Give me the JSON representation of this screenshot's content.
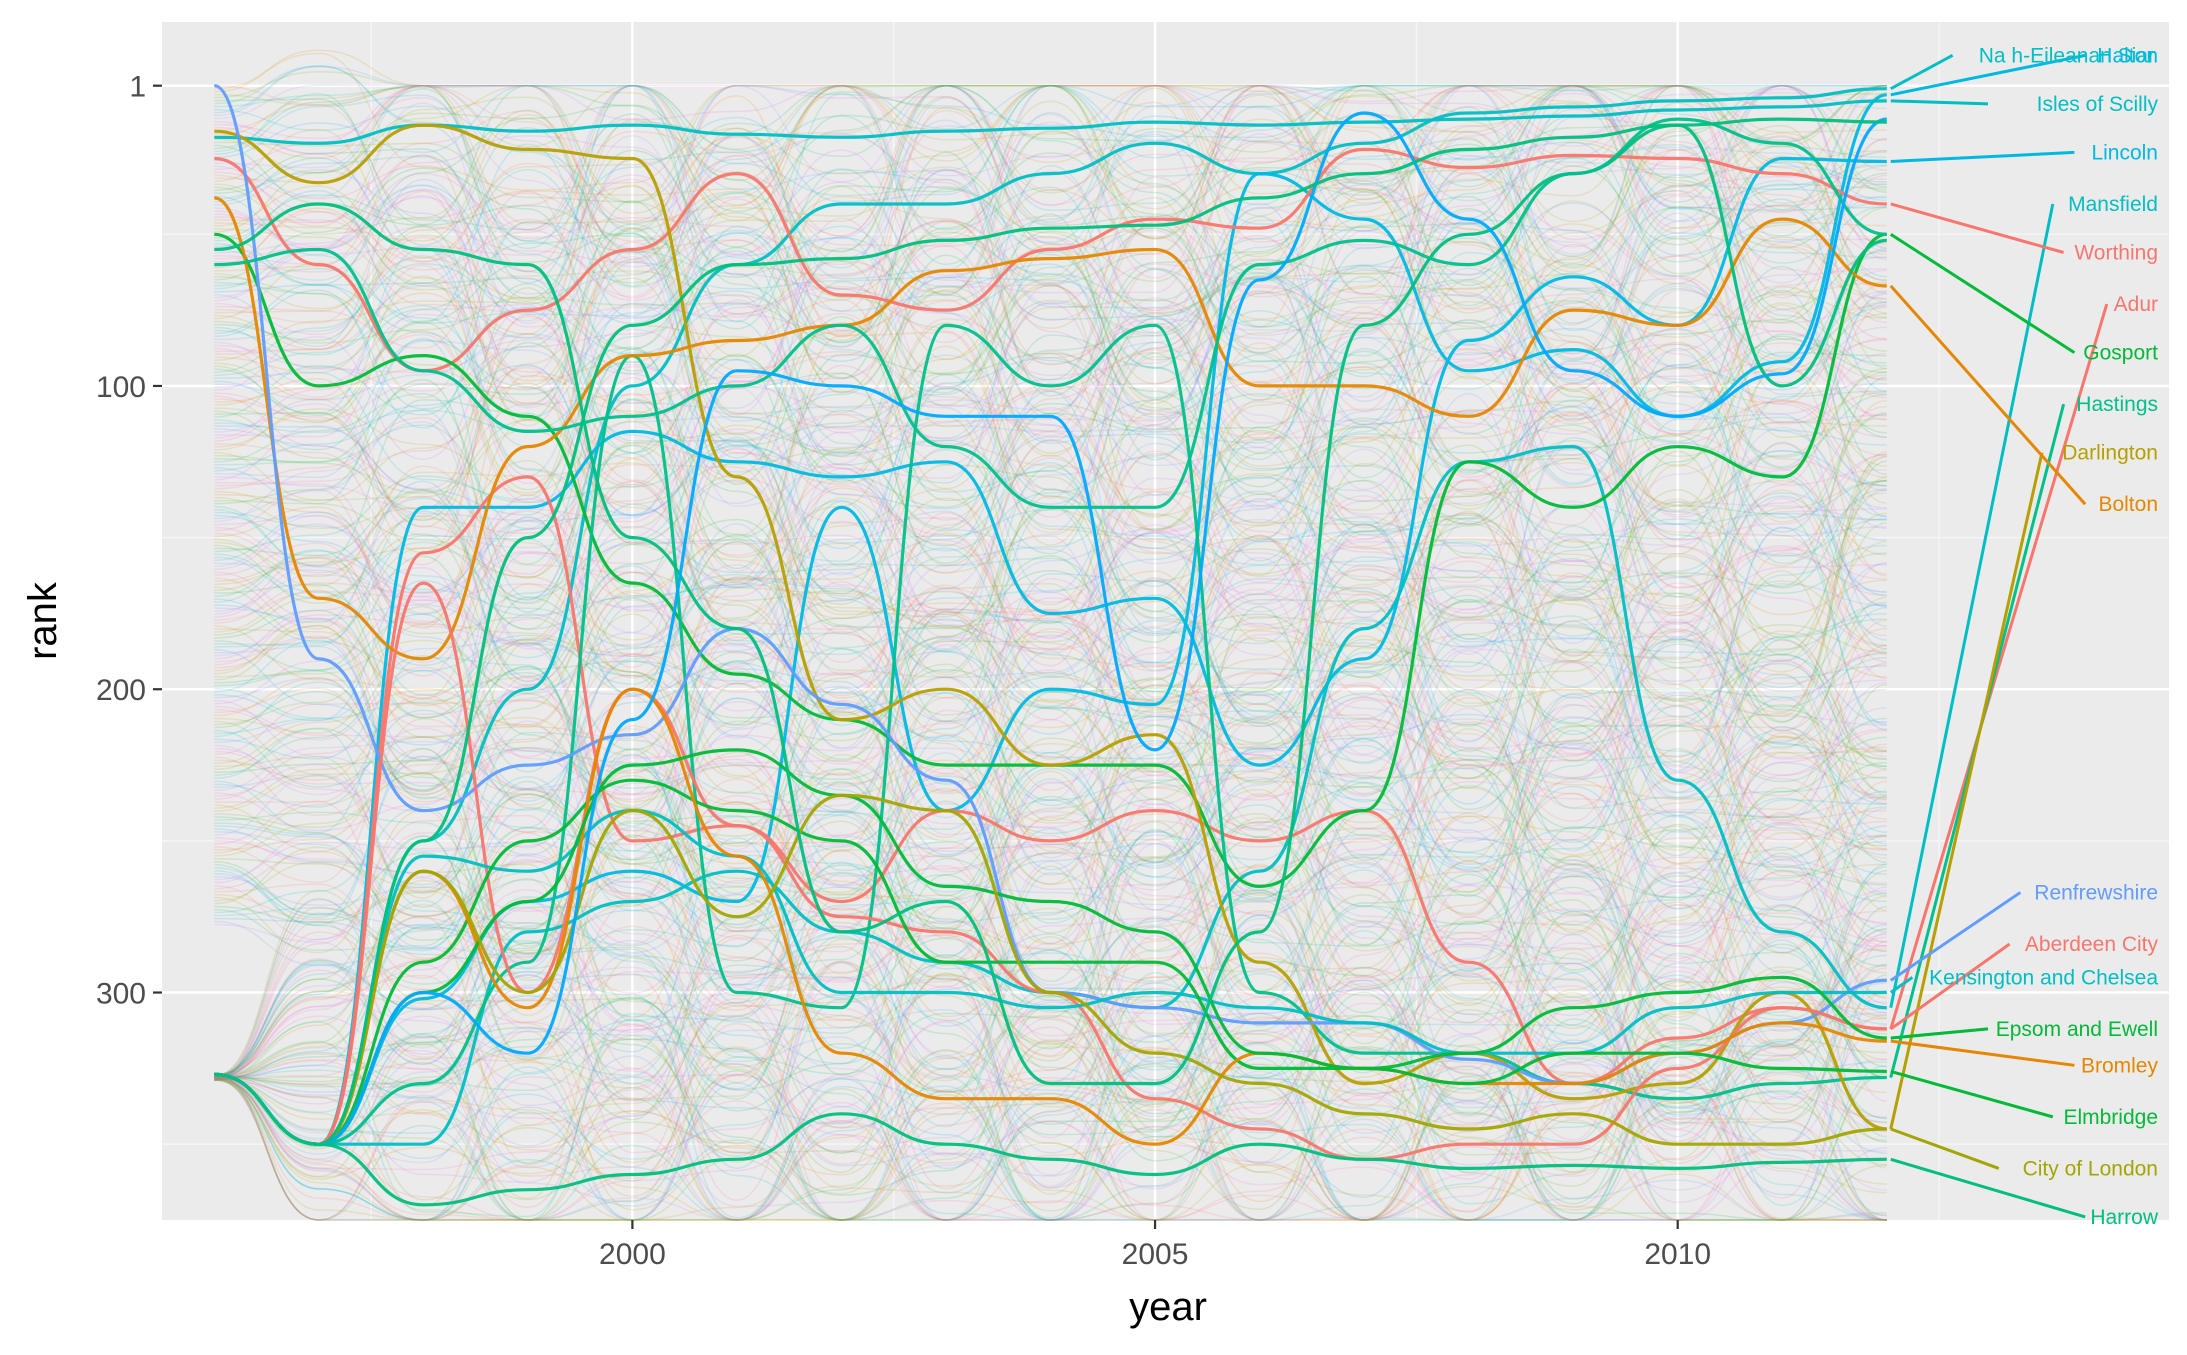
{
  "chart_data": {
    "type": "line",
    "subtype": "bump chart (smoothed rank over time)",
    "title": "",
    "xlabel": "year",
    "ylabel": "rank",
    "x_ticks": [
      2000,
      2005,
      2010
    ],
    "y_ticks": [
      1,
      100,
      200,
      300
    ],
    "xlim": [
      1995.5,
      2014.7
    ],
    "ylim": [
      375,
      -20
    ],
    "y_reversed": true,
    "grid": true,
    "legend": "none (series labeled at line ends)",
    "background_series_count": 380,
    "years": [
      1996,
      1997,
      1998,
      1999,
      2000,
      2001,
      2002,
      2003,
      2004,
      2005,
      2006,
      2007,
      2008,
      2009,
      2010,
      2011,
      2012
    ],
    "series": [
      {
        "name": "Na h-Eileanan Siar",
        "color": "#00BFC4",
        "values": [
          327,
          350,
          250,
          200,
          100,
          60,
          40,
          40,
          30,
          20,
          30,
          20,
          10,
          8,
          6,
          5,
          2
        ]
      },
      {
        "name": "Halton",
        "color": "#00B9E3",
        "values": [
          327,
          350,
          302,
          270,
          260,
          270,
          140,
          240,
          200,
          205,
          30,
          45,
          95,
          88,
          110,
          92,
          4
        ]
      },
      {
        "name": "Isles of Scilly",
        "color": "#00BFC4",
        "values": [
          18,
          20,
          14,
          16,
          14,
          17,
          18,
          16,
          15,
          13,
          14,
          13,
          12,
          11,
          9,
          8,
          6
        ]
      },
      {
        "name": "Lincoln",
        "color": "#00B9E3",
        "values": [
          327,
          350,
          140,
          140,
          115,
          125,
          130,
          125,
          175,
          170,
          225,
          190,
          85,
          64,
          80,
          25,
          26
        ]
      },
      {
        "name": "Mansfield",
        "color": "#00BFC4",
        "values": [
          327,
          350,
          350,
          280,
          270,
          260,
          280,
          290,
          300,
          305,
          260,
          180,
          125,
          120,
          230,
          280,
          305
        ]
      },
      {
        "name": "Worthing",
        "color": "#F8766D",
        "values": [
          25,
          60,
          95,
          75,
          55,
          30,
          70,
          75,
          55,
          45,
          48,
          22,
          28,
          24,
          25,
          30,
          40
        ]
      },
      {
        "name": "Adur",
        "color": "#F8766D",
        "values": [
          327,
          350,
          155,
          130,
          250,
          245,
          270,
          240,
          250,
          240,
          250,
          240,
          290,
          330,
          315,
          305,
          312
        ]
      },
      {
        "name": "Gosport",
        "color": "#00BA38",
        "values": [
          50,
          100,
          90,
          110,
          165,
          195,
          210,
          225,
          225,
          225,
          265,
          240,
          125,
          140,
          120,
          130,
          50
        ]
      },
      {
        "name": "Hastings",
        "color": "#00C08B",
        "values": [
          327,
          350,
          330,
          290,
          90,
          300,
          305,
          80,
          100,
          80,
          300,
          320,
          320,
          330,
          335,
          330,
          328
        ]
      },
      {
        "name": "Darlington",
        "color": "#B79F00",
        "values": [
          16,
          33,
          14,
          22,
          25,
          130,
          210,
          200,
          225,
          215,
          290,
          330,
          320,
          335,
          330,
          300,
          345
        ]
      },
      {
        "name": "Bolton",
        "color": "#E58700",
        "values": [
          38,
          170,
          190,
          120,
          90,
          85,
          80,
          62,
          58,
          55,
          100,
          100,
          110,
          75,
          80,
          45,
          67
        ]
      },
      {
        "name": "Renfrewshire",
        "color": "#619CFF",
        "values": [
          1,
          190,
          240,
          225,
          215,
          180,
          205,
          230,
          300,
          305,
          310,
          310,
          322,
          330,
          320,
          310,
          296
        ]
      },
      {
        "name": "Aberdeen City",
        "color": "#F8766D",
        "values": [
          327,
          350,
          165,
          300,
          200,
          245,
          275,
          280,
          300,
          335,
          345,
          355,
          350,
          350,
          325,
          305,
          312
        ]
      },
      {
        "name": "Kensington and Chelsea",
        "color": "#00BFC4",
        "values": [
          327,
          350,
          255,
          260,
          240,
          255,
          300,
          300,
          305,
          300,
          305,
          310,
          320,
          320,
          305,
          300,
          300
        ]
      },
      {
        "name": "Epsom and Ewell",
        "color": "#00BA38",
        "values": [
          327,
          350,
          290,
          250,
          230,
          240,
          250,
          290,
          290,
          290,
          325,
          325,
          320,
          305,
          300,
          295,
          315
        ]
      },
      {
        "name": "Bromley",
        "color": "#E58700",
        "values": [
          327,
          350,
          260,
          305,
          200,
          255,
          320,
          335,
          335,
          350,
          320,
          325,
          330,
          330,
          320,
          310,
          316
        ]
      },
      {
        "name": "Elmbridge",
        "color": "#00BA38",
        "values": [
          327,
          350,
          300,
          270,
          225,
          220,
          235,
          265,
          270,
          280,
          320,
          325,
          330,
          320,
          320,
          325,
          326
        ]
      },
      {
        "name": "City of London",
        "color": "#A3A500",
        "values": [
          327,
          350,
          260,
          300,
          240,
          275,
          235,
          240,
          300,
          320,
          330,
          340,
          345,
          340,
          350,
          350,
          345
        ]
      },
      {
        "name": "Harrow",
        "color": "#00BF7D",
        "values": [
          327,
          350,
          370,
          365,
          360,
          355,
          340,
          350,
          355,
          360,
          350,
          355,
          358,
          357,
          358,
          356,
          355
        ]
      },
      {
        "name": "",
        "color": "#00BF7D",
        "values": [
          55,
          40,
          55,
          60,
          150,
          180,
          280,
          270,
          330,
          330,
          280,
          80,
          50,
          30,
          14,
          100,
          52
        ]
      },
      {
        "name": "",
        "color": "#00C08B",
        "values": [
          60,
          55,
          95,
          115,
          110,
          100,
          80,
          120,
          140,
          140,
          60,
          52,
          60,
          30,
          12,
          20,
          50
        ]
      },
      {
        "name": "",
        "color": "#00A9FF",
        "values": [
          327,
          350,
          300,
          320,
          210,
          95,
          100,
          110,
          110,
          220,
          65,
          10,
          45,
          95,
          110,
          96,
          12
        ]
      },
      {
        "name": "",
        "color": "#00BF7D",
        "values": [
          327,
          350,
          250,
          150,
          80,
          60,
          58,
          52,
          48,
          47,
          38,
          30,
          22,
          18,
          14,
          12,
          13
        ]
      }
    ],
    "end_labels": [
      "Na h-Eileanan Siar",
      "Halton",
      "Isles of Scilly",
      "Lincoln",
      "Mansfield",
      "Worthing",
      "Adur",
      "Gosport",
      "Hastings",
      "Darlington",
      "Bolton",
      "Renfrewshire",
      "Aberdeen City",
      "Kensington and Chelsea",
      "Epsom and Ewell",
      "Bromley",
      "Elmbridge",
      "City of London",
      "Harrow"
    ]
  }
}
